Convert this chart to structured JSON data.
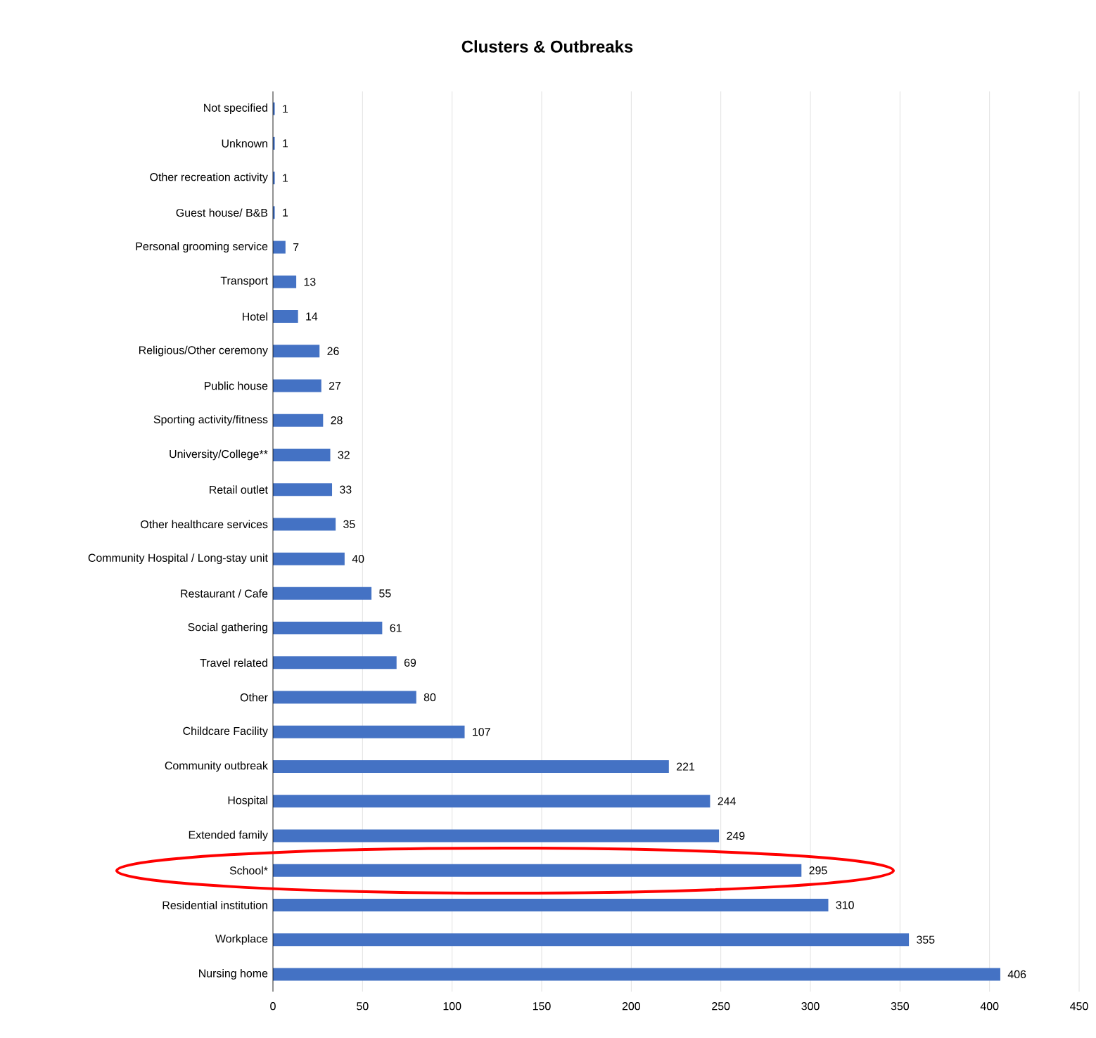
{
  "chart_data": {
    "type": "bar",
    "orientation": "horizontal",
    "title": "Clusters & Outbreaks",
    "categories": [
      "Not specified",
      "Unknown",
      "Other recreation activity",
      "Guest house/ B&B",
      "Personal grooming service",
      "Transport",
      "Hotel",
      "Religious/Other ceremony",
      "Public house",
      "Sporting activity/fitness",
      "University/College**",
      "Retail outlet",
      "Other healthcare services",
      "Community Hospital / Long-stay unit",
      "Restaurant / Cafe",
      "Social gathering",
      "Travel related",
      "Other",
      "Childcare Facility",
      "Community outbreak",
      "Hospital",
      "Extended family",
      "School*",
      "Residential institution",
      "Workplace",
      "Nursing home"
    ],
    "values": [
      1,
      1,
      1,
      1,
      7,
      13,
      14,
      26,
      27,
      28,
      32,
      33,
      35,
      40,
      55,
      61,
      69,
      80,
      107,
      221,
      244,
      249,
      295,
      310,
      355,
      406
    ],
    "color": "#4472c4",
    "xlim": [
      0,
      450
    ],
    "xticks": [
      0,
      50,
      100,
      150,
      200,
      250,
      300,
      350,
      400,
      450
    ],
    "grid": "x",
    "data_labels": true
  }
}
